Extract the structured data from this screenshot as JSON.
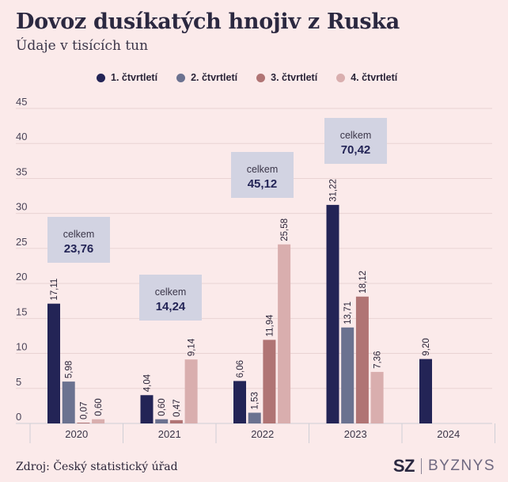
{
  "header": {
    "title": "Dovoz dusíkatých hnojiv z Ruska",
    "subtitle": "Údaje v tisících tun"
  },
  "footer": {
    "source": "Zdroj: Český statistický úřad",
    "brand_primary": "SZ",
    "brand_secondary": "BYZNYS"
  },
  "colors": {
    "q1": "#232456",
    "q2": "#6b7290",
    "q3": "#b07474",
    "q4": "#d9aeae",
    "totals_box": "#d2d3e2",
    "background": "#fbeaea"
  },
  "chart_data": {
    "type": "bar",
    "categories": [
      "2020",
      "2021",
      "2022",
      "2023",
      "2024"
    ],
    "series": [
      {
        "name": "1. čtvrtletí",
        "values": [
          17.11,
          4.04,
          6.06,
          31.22,
          9.2
        ],
        "labels": [
          "17,11",
          "4,04",
          "6,06",
          "31,22",
          "9,20"
        ]
      },
      {
        "name": "2. čtvrtletí",
        "values": [
          5.98,
          0.6,
          1.53,
          13.71,
          null
        ],
        "labels": [
          "5,98",
          "0,60",
          "1,53",
          "13,71",
          ""
        ]
      },
      {
        "name": "3. čtvrtletí",
        "values": [
          0.07,
          0.47,
          11.94,
          18.12,
          null
        ],
        "labels": [
          "0,07",
          "0,47",
          "11,94",
          "18,12",
          ""
        ]
      },
      {
        "name": "4. čtvrtletí",
        "values": [
          0.6,
          9.14,
          25.58,
          7.36,
          null
        ],
        "labels": [
          "0,60",
          "9,14",
          "25,58",
          "7,36",
          ""
        ]
      }
    ],
    "totals": [
      {
        "category": "2020",
        "label": "celkem",
        "value": "23,76"
      },
      {
        "category": "2021",
        "label": "celkem",
        "value": "14,24"
      },
      {
        "category": "2022",
        "label": "celkem",
        "value": "45,12"
      },
      {
        "category": "2023",
        "label": "celkem",
        "value": "70,42"
      }
    ],
    "ylim": [
      0,
      45
    ],
    "yticks": [
      "0",
      "5",
      "10",
      "15",
      "20",
      "25",
      "30",
      "35",
      "40",
      "45"
    ],
    "grid": true,
    "legend_position": "top"
  }
}
